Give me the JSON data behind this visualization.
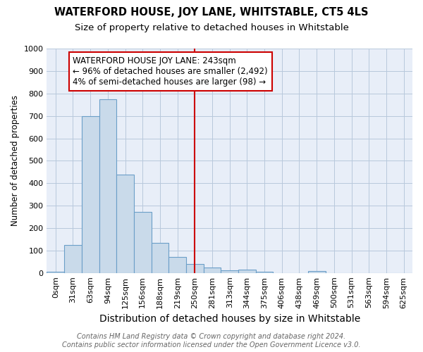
{
  "title": "WATERFORD HOUSE, JOY LANE, WHITSTABLE, CT5 4LS",
  "subtitle": "Size of property relative to detached houses in Whitstable",
  "xlabel": "Distribution of detached houses by size in Whitstable",
  "ylabel": "Number of detached properties",
  "categories": [
    "0sqm",
    "31sqm",
    "63sqm",
    "94sqm",
    "125sqm",
    "156sqm",
    "188sqm",
    "219sqm",
    "250sqm",
    "281sqm",
    "313sqm",
    "344sqm",
    "375sqm",
    "406sqm",
    "438sqm",
    "469sqm",
    "500sqm",
    "531sqm",
    "563sqm",
    "594sqm",
    "625sqm"
  ],
  "values": [
    5,
    125,
    700,
    775,
    440,
    272,
    133,
    70,
    40,
    25,
    12,
    15,
    5,
    0,
    0,
    8,
    0,
    0,
    0,
    0,
    0
  ],
  "bar_color": "#c9daea",
  "bar_edge_color": "#6b9fc8",
  "vline_x": 8,
  "vline_color": "#cc0000",
  "annotation_text": "WATERFORD HOUSE JOY LANE: 243sqm\n← 96% of detached houses are smaller (2,492)\n4% of semi-detached houses are larger (98) →",
  "annotation_box_edge_color": "#cc0000",
  "ylim": [
    0,
    1000
  ],
  "yticks": [
    0,
    100,
    200,
    300,
    400,
    500,
    600,
    700,
    800,
    900,
    1000
  ],
  "grid_color": "#b8c8dc",
  "bg_color": "#e8eef8",
  "footer_text": "Contains HM Land Registry data © Crown copyright and database right 2024.\nContains public sector information licensed under the Open Government Licence v3.0.",
  "title_fontsize": 10.5,
  "subtitle_fontsize": 9.5,
  "xlabel_fontsize": 10,
  "ylabel_fontsize": 8.5,
  "tick_fontsize": 8,
  "annotation_fontsize": 8.5,
  "footer_fontsize": 7
}
